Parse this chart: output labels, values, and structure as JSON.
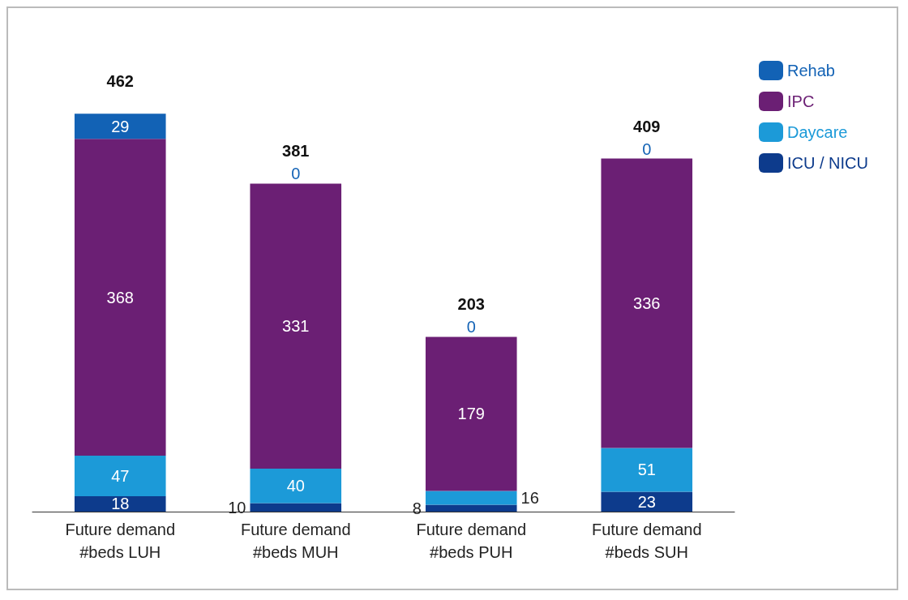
{
  "chart_data": {
    "type": "bar",
    "stacked": true,
    "data_labels": true,
    "legend": "top right",
    "categories": [
      "Future demand\n#beds LUH",
      "Future demand\n#beds MUH",
      "Future demand\n#beds PUH",
      "Future demand\n#beds SUH"
    ],
    "series": [
      {
        "name": "ICU / NICU",
        "color": "#0d3b8c",
        "values": [
          18,
          10,
          8,
          23
        ]
      },
      {
        "name": "Daycare",
        "color": "#1c9ad8",
        "values": [
          47,
          40,
          16,
          51
        ]
      },
      {
        "name": "IPC",
        "color": "#6b1f74",
        "values": [
          368,
          331,
          179,
          336
        ]
      },
      {
        "name": "Rehab",
        "color": "#1262b5",
        "values": [
          29,
          0,
          0,
          0
        ]
      }
    ],
    "totals": [
      "462",
      "381",
      "203",
      "409"
    ]
  }
}
